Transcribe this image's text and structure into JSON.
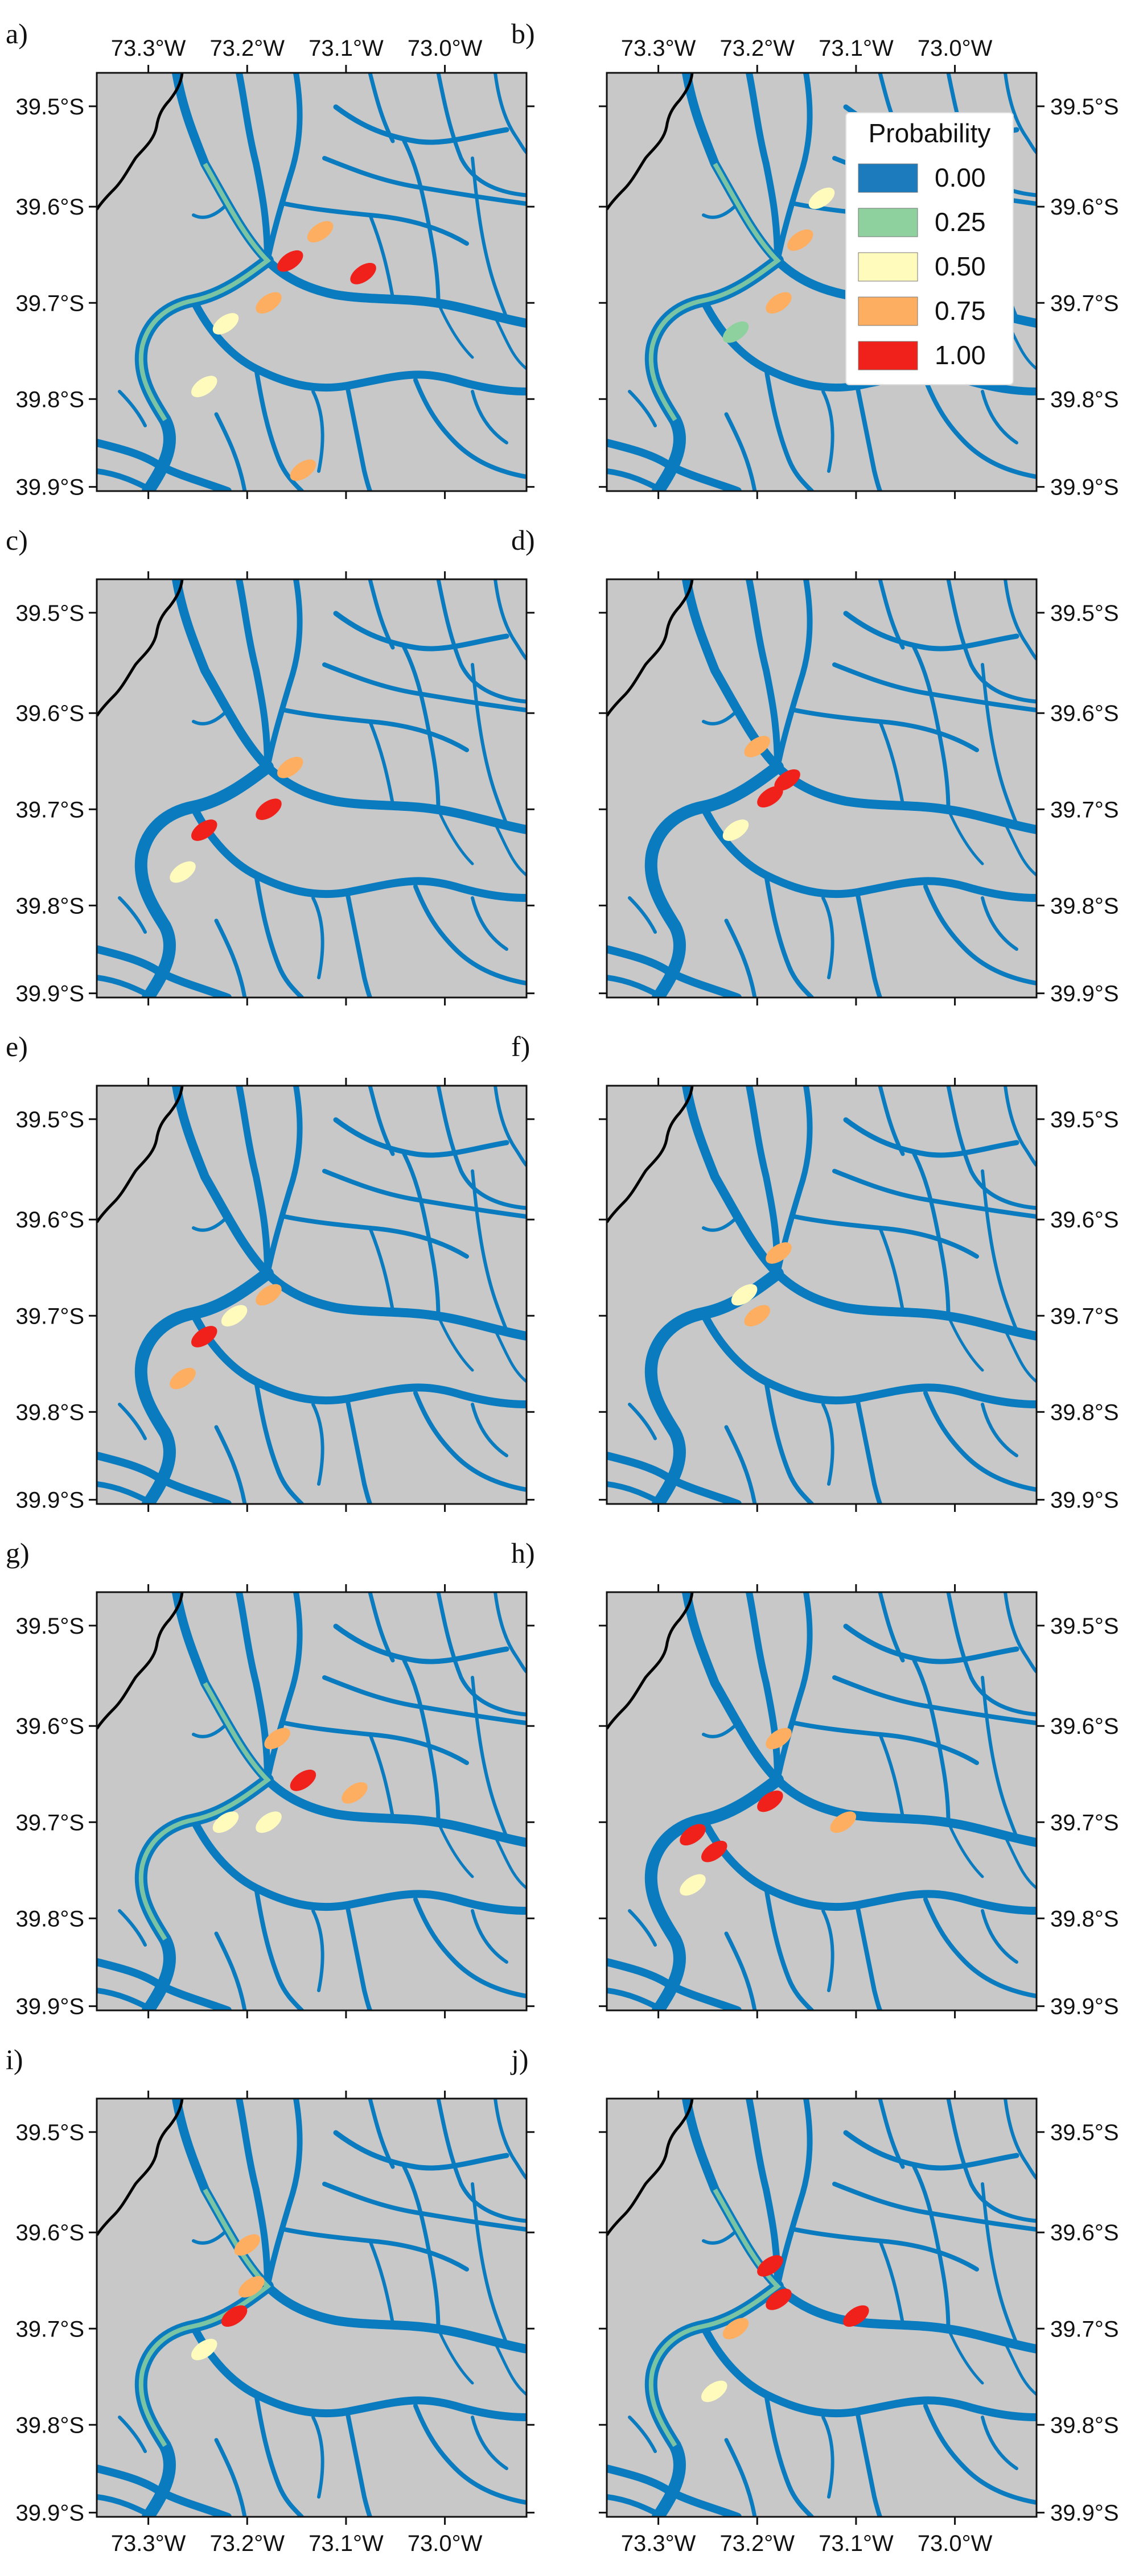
{
  "figure": {
    "panels": [
      {
        "letter": "a)",
        "show_x_top": true,
        "show_x_bottom": false,
        "y_side": "left",
        "hotspots": [
          [
            0.45,
            0.45,
            1.0
          ],
          [
            0.52,
            0.38,
            0.75
          ],
          [
            0.4,
            0.55,
            0.75
          ],
          [
            0.25,
            0.75,
            0.5
          ],
          [
            0.48,
            0.95,
            0.75
          ],
          [
            0.62,
            0.48,
            1.0
          ],
          [
            0.3,
            0.6,
            0.5
          ]
        ],
        "green": true,
        "legend": false
      },
      {
        "letter": "b)",
        "show_x_top": true,
        "show_x_bottom": false,
        "y_side": "right",
        "hotspots": [
          [
            0.45,
            0.4,
            0.75
          ],
          [
            0.4,
            0.55,
            0.75
          ],
          [
            0.5,
            0.3,
            0.5
          ],
          [
            0.3,
            0.62,
            0.25
          ]
        ],
        "green": true,
        "legend": true
      },
      {
        "letter": "c)",
        "show_x_top": false,
        "show_x_bottom": false,
        "y_side": "left",
        "hotspots": [
          [
            0.4,
            0.55,
            1.0
          ],
          [
            0.25,
            0.6,
            1.0
          ],
          [
            0.45,
            0.45,
            0.75
          ],
          [
            0.2,
            0.7,
            0.5
          ]
        ],
        "green": false,
        "legend": false
      },
      {
        "letter": "d)",
        "show_x_top": false,
        "show_x_bottom": false,
        "y_side": "right",
        "hotspots": [
          [
            0.38,
            0.52,
            1.0
          ],
          [
            0.42,
            0.48,
            1.0
          ],
          [
            0.35,
            0.4,
            0.75
          ],
          [
            0.3,
            0.6,
            0.5
          ]
        ],
        "green": false,
        "legend": false
      },
      {
        "letter": "e)",
        "show_x_top": false,
        "show_x_bottom": false,
        "y_side": "left",
        "hotspots": [
          [
            0.25,
            0.6,
            1.0
          ],
          [
            0.2,
            0.7,
            0.75
          ],
          [
            0.4,
            0.5,
            0.75
          ],
          [
            0.32,
            0.55,
            0.5
          ]
        ],
        "green": false,
        "legend": false
      },
      {
        "letter": "f)",
        "show_x_top": false,
        "show_x_bottom": false,
        "y_side": "right",
        "hotspots": [
          [
            0.4,
            0.4,
            0.75
          ],
          [
            0.35,
            0.55,
            0.75
          ],
          [
            0.32,
            0.5,
            0.5
          ]
        ],
        "green": false,
        "legend": false
      },
      {
        "letter": "g)",
        "show_x_top": false,
        "show_x_bottom": false,
        "y_side": "left",
        "hotspots": [
          [
            0.42,
            0.35,
            0.75
          ],
          [
            0.48,
            0.45,
            1.0
          ],
          [
            0.6,
            0.48,
            0.75
          ],
          [
            0.3,
            0.55,
            0.5
          ],
          [
            0.4,
            0.55,
            0.5
          ]
        ],
        "green": true,
        "legend": false
      },
      {
        "letter": "h)",
        "show_x_top": false,
        "show_x_bottom": false,
        "y_side": "right",
        "hotspots": [
          [
            0.2,
            0.58,
            1.0
          ],
          [
            0.25,
            0.62,
            1.0
          ],
          [
            0.38,
            0.5,
            1.0
          ],
          [
            0.55,
            0.55,
            0.75
          ],
          [
            0.4,
            0.35,
            0.75
          ],
          [
            0.2,
            0.7,
            0.5
          ]
        ],
        "green": false,
        "legend": false
      },
      {
        "letter": "i)",
        "show_x_top": false,
        "show_x_bottom": true,
        "y_side": "left",
        "hotspots": [
          [
            0.32,
            0.52,
            1.0
          ],
          [
            0.36,
            0.45,
            0.75
          ],
          [
            0.35,
            0.35,
            0.75
          ],
          [
            0.25,
            0.6,
            0.5
          ]
        ],
        "green": true,
        "legend": false
      },
      {
        "letter": "j)",
        "show_x_top": false,
        "show_x_bottom": true,
        "y_side": "right",
        "hotspots": [
          [
            0.38,
            0.4,
            1.0
          ],
          [
            0.4,
            0.48,
            1.0
          ],
          [
            0.3,
            0.55,
            0.75
          ],
          [
            0.58,
            0.52,
            1.0
          ],
          [
            0.25,
            0.7,
            0.5
          ]
        ],
        "green": true,
        "legend": false
      }
    ],
    "x_ticks": [
      {
        "label": "73.3°W",
        "frac": 0.12
      },
      {
        "label": "73.2°W",
        "frac": 0.35
      },
      {
        "label": "73.1°W",
        "frac": 0.58
      },
      {
        "label": "73.0°W",
        "frac": 0.81
      }
    ],
    "y_ticks": [
      {
        "label": "39.5°S",
        "frac": 0.08
      },
      {
        "label": "39.6°S",
        "frac": 0.32
      },
      {
        "label": "39.7°S",
        "frac": 0.55
      },
      {
        "label": "39.8°S",
        "frac": 0.78
      },
      {
        "label": "39.9°S",
        "frac": 0.99
      }
    ],
    "legend": {
      "title": "Probability",
      "items": [
        {
          "label": "0.00",
          "color": "#1b7bbd"
        },
        {
          "label": "0.25",
          "color": "#8fd19e"
        },
        {
          "label": "0.50",
          "color": "#fffbbd"
        },
        {
          "label": "0.75",
          "color": "#fdae61"
        },
        {
          "label": "1.00",
          "color": "#f0201a"
        }
      ]
    },
    "colors": {
      "land": "#c8c8c8",
      "river": "#0a7bbf",
      "coast": "#000000"
    }
  }
}
